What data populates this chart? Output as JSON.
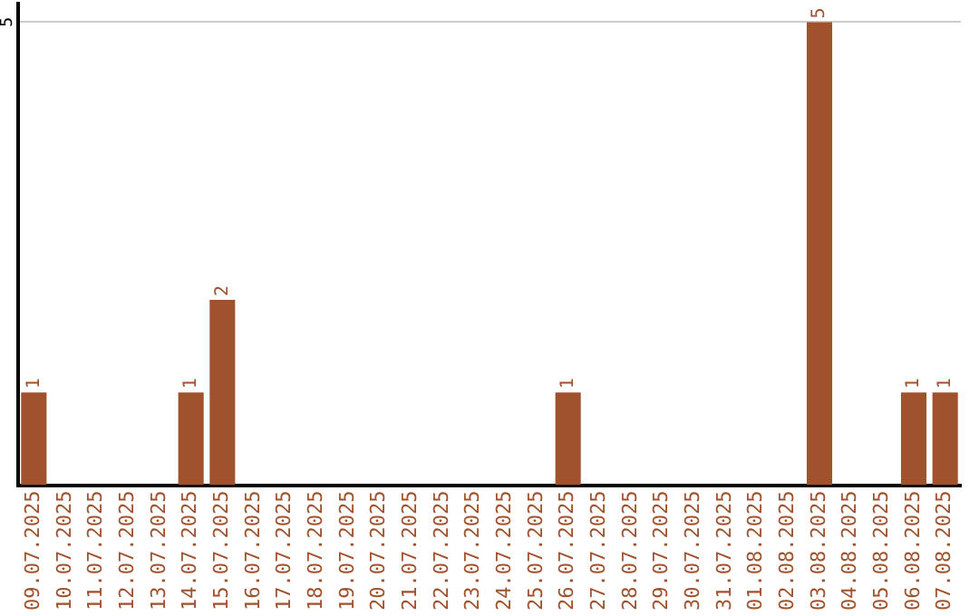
{
  "chart_data": {
    "type": "bar",
    "categories": [
      "09.07.2025",
      "10.07.2025",
      "11.07.2025",
      "12.07.2025",
      "13.07.2025",
      "14.07.2025",
      "15.07.2025",
      "16.07.2025",
      "17.07.2025",
      "18.07.2025",
      "19.07.2025",
      "20.07.2025",
      "21.07.2025",
      "22.07.2025",
      "23.07.2025",
      "24.07.2025",
      "25.07.2025",
      "26.07.2025",
      "27.07.2025",
      "28.07.2025",
      "29.07.2025",
      "30.07.2025",
      "31.07.2025",
      "01.08.2025",
      "02.08.2025",
      "03.08.2025",
      "04.08.2025",
      "05.08.2025",
      "06.08.2025",
      "07.08.2025"
    ],
    "values": [
      1,
      0,
      0,
      0,
      0,
      1,
      2,
      0,
      0,
      0,
      0,
      0,
      0,
      0,
      0,
      0,
      0,
      1,
      0,
      0,
      0,
      0,
      0,
      0,
      0,
      5,
      0,
      0,
      1,
      1
    ],
    "value_labels": [
      "1",
      null,
      null,
      null,
      null,
      "1",
      "2",
      null,
      null,
      null,
      null,
      null,
      null,
      null,
      null,
      null,
      null,
      "1",
      null,
      null,
      null,
      null,
      null,
      null,
      null,
      "5",
      null,
      null,
      "1",
      "1"
    ],
    "color": "#a0522d",
    "ylim": [
      0,
      5.2
    ],
    "yticks": [
      5
    ],
    "grid": "y",
    "legend": false
  }
}
